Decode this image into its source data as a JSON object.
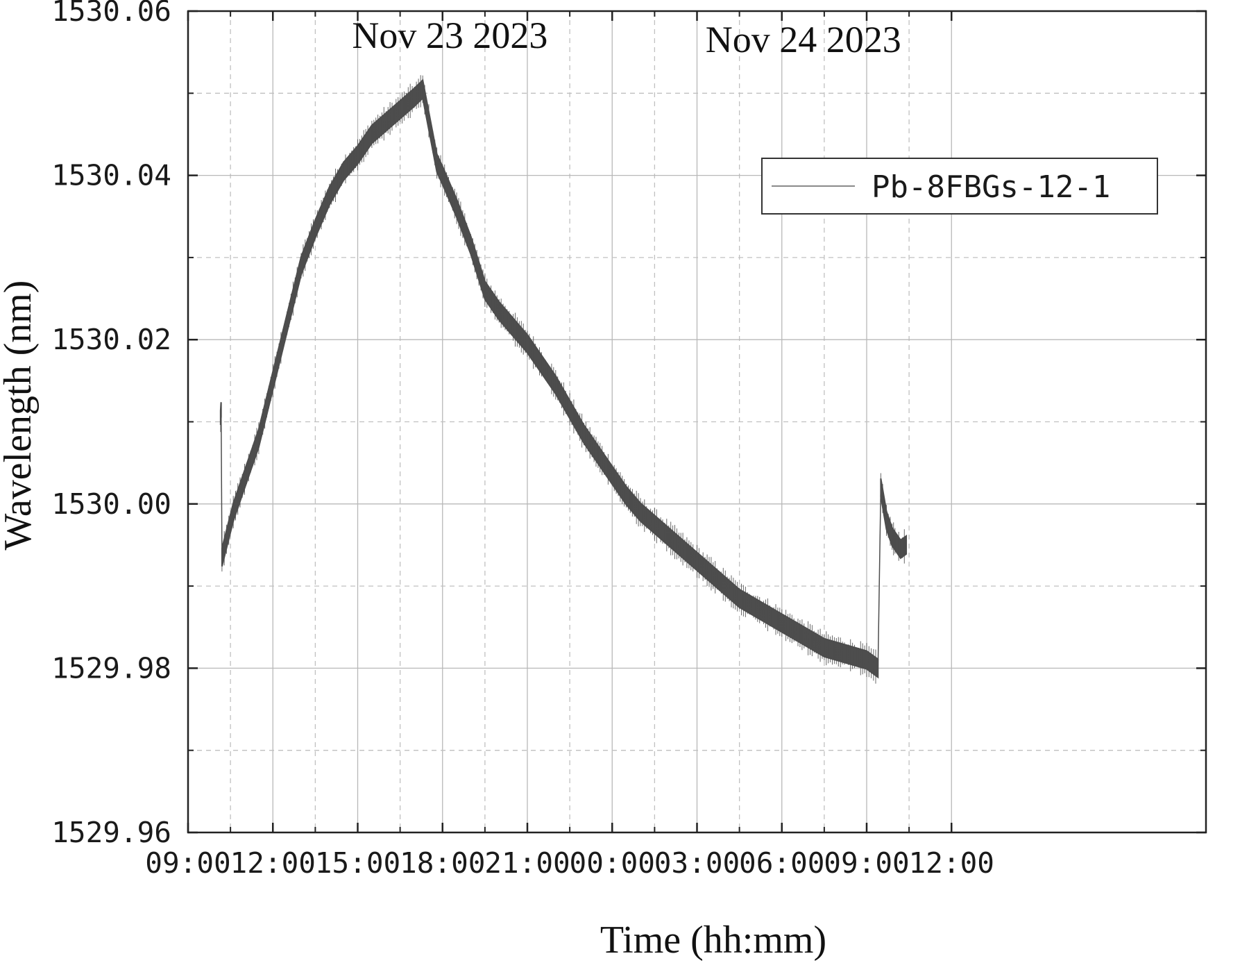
{
  "chart_data": {
    "type": "line",
    "title": "",
    "xlabel": "Time (hh:mm)",
    "ylabel": "Wavelength (nm)",
    "x_unit": "hours since 2023-11-23 09:00",
    "xlim": [
      0,
      36
    ],
    "ylim": [
      1529.96,
      1530.06
    ],
    "x_ticks": [
      {
        "value": 0,
        "label": "09:00"
      },
      {
        "value": 3,
        "label": "12:00"
      },
      {
        "value": 6,
        "label": "15:00"
      },
      {
        "value": 9,
        "label": "18:00"
      },
      {
        "value": 12,
        "label": "21:00"
      },
      {
        "value": 15,
        "label": "00:00"
      },
      {
        "value": 18,
        "label": "03:00"
      },
      {
        "value": 21,
        "label": "06:00"
      },
      {
        "value": 24,
        "label": "09:00"
      },
      {
        "value": 27,
        "label": "12:00"
      }
    ],
    "y_ticks": [
      {
        "value": 1529.96,
        "label": "1529.96"
      },
      {
        "value": 1529.98,
        "label": "1529.98"
      },
      {
        "value": 1530.0,
        "label": "1530.00"
      },
      {
        "value": 1530.02,
        "label": "1530.02"
      },
      {
        "value": 1530.04,
        "label": "1530.04"
      },
      {
        "value": 1530.06,
        "label": "1530.06"
      }
    ],
    "annotations": [
      {
        "text": "Nov 23 2023",
        "x": 5.8,
        "y": 1530.0555
      },
      {
        "text": "Nov 24 2023",
        "x": 18.3,
        "y": 1530.055
      }
    ],
    "grid": true,
    "legend_position": "top-right",
    "series": [
      {
        "name": "Pb-8FBGs-12-1",
        "color": "#4d4d4d",
        "band_width_nm": 0.0022,
        "segments": [
          {
            "points": [
              [
                1.15,
                1530.0105
              ],
              [
                1.17,
                1530.0115
              ]
            ]
          },
          {
            "points": [
              [
                1.2,
                1529.9935
              ],
              [
                1.6,
                1529.999
              ],
              [
                2.0,
                1530.003
              ],
              [
                2.5,
                1530.008
              ],
              [
                3.0,
                1530.015
              ],
              [
                3.5,
                1530.022
              ],
              [
                4.0,
                1530.029
              ],
              [
                4.5,
                1530.0335
              ],
              [
                5.0,
                1530.0375
              ],
              [
                5.5,
                1530.0405
              ],
              [
                6.0,
                1530.0425
              ],
              [
                6.5,
                1530.045
              ],
              [
                7.0,
                1530.0465
              ],
              [
                7.5,
                1530.048
              ],
              [
                8.0,
                1530.0495
              ],
              [
                8.3,
                1530.0505
              ],
              [
                8.8,
                1530.0415
              ],
              [
                9.0,
                1530.04
              ],
              [
                9.5,
                1530.036
              ],
              [
                10.0,
                1530.0315
              ],
              [
                10.5,
                1530.026
              ],
              [
                11.0,
                1530.0235
              ],
              [
                11.5,
                1530.0215
              ],
              [
                12.0,
                1530.0195
              ],
              [
                12.5,
                1530.017
              ],
              [
                13.0,
                1530.0145
              ],
              [
                13.5,
                1530.0115
              ],
              [
                14.0,
                1530.0085
              ],
              [
                14.5,
                1530.006
              ],
              [
                15.0,
                1530.0035
              ],
              [
                15.5,
                1530.001
              ],
              [
                16.0,
                1529.999
              ],
              [
                16.5,
                1529.9975
              ],
              [
                17.0,
                1529.996
              ],
              [
                17.5,
                1529.9945
              ],
              [
                18.0,
                1529.993
              ],
              [
                18.5,
                1529.9915
              ],
              [
                19.0,
                1529.99
              ],
              [
                19.5,
                1529.9885
              ],
              [
                20.0,
                1529.9875
              ],
              [
                20.5,
                1529.9865
              ],
              [
                21.0,
                1529.9855
              ],
              [
                21.5,
                1529.9845
              ],
              [
                22.0,
                1529.9835
              ],
              [
                22.5,
                1529.9825
              ],
              [
                23.0,
                1529.982
              ],
              [
                23.5,
                1529.9815
              ],
              [
                24.0,
                1529.981
              ],
              [
                24.4,
                1529.98
              ]
            ]
          },
          {
            "points": [
              [
                24.5,
                1530.002
              ],
              [
                24.7,
                1529.998
              ],
              [
                24.9,
                1529.996
              ],
              [
                25.0,
                1529.9955
              ],
              [
                25.2,
                1529.9945
              ],
              [
                25.4,
                1529.995
              ]
            ]
          }
        ]
      }
    ]
  }
}
